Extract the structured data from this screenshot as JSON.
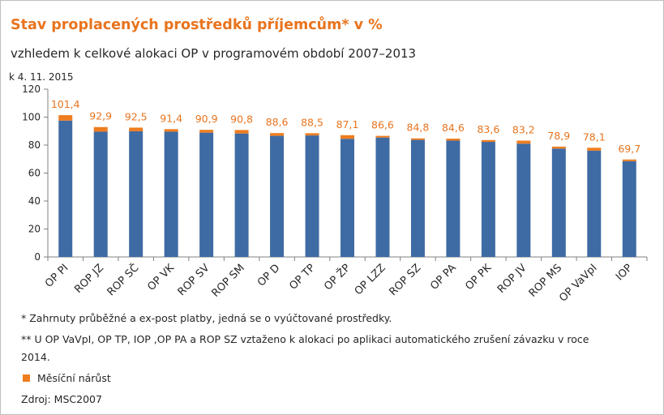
{
  "title": "Stav proplacených prostředků příjemcům* v %",
  "subtitle": "vzhledem k celkové alokaci OP v programovém období 2007–2013",
  "as_of": "k 4. 11. 2015",
  "notes": [
    "* Zahrnuty průběžné a ex-post platby, jedná se o vyúčtované prostředky.",
    "** U OP VaVpI, OP TP, IOP ,OP PA a ROP SZ vztaženo k alokaci po aplikaci automatického zrušení závazku v roce",
    "2014."
  ],
  "legend": {
    "label": "Měsíční nárůst",
    "color": "#ed7d1f"
  },
  "source": "Zdroj: MSC2007",
  "colors": {
    "base": "#3f6ba4",
    "increase": "#ed7d1f",
    "label": "#e8741e"
  },
  "chart_data": {
    "type": "bar",
    "stacked": true,
    "categories": [
      "OP PI",
      "ROP JZ",
      "ROP SČ",
      "OP VK",
      "ROP SV",
      "ROP SM",
      "OP D",
      "OP TP",
      "OP ŽP",
      "OP LZZ",
      "ROP SZ",
      "OP PA",
      "OP PK",
      "ROP JV",
      "ROP MS",
      "OP VaVpI",
      "IOP"
    ],
    "totals": [
      101.4,
      92.9,
      92.5,
      91.4,
      90.9,
      90.8,
      88.6,
      88.5,
      87.1,
      86.6,
      84.8,
      84.6,
      83.6,
      83.2,
      78.9,
      78.1,
      69.7
    ],
    "total_labels": [
      "101,4",
      "92,9",
      "92,5",
      "91,4",
      "90,9",
      "90,8",
      "88,6",
      "88,5",
      "87,1",
      "86,6",
      "84,8",
      "84,6",
      "83,6",
      "83,2",
      "78,9",
      "78,1",
      "69,7"
    ],
    "series": [
      {
        "values": [
          97.5,
          89.6,
          89.9,
          89.6,
          88.9,
          88.3,
          86.6,
          86.9,
          84.5,
          85.4,
          83.7,
          83.2,
          82.3,
          81.0,
          77.5,
          76.0,
          68.5
        ]
      },
      {
        "name": "Měsíční nárůst",
        "values": [
          3.9,
          3.3,
          2.6,
          1.8,
          2.0,
          2.5,
          2.0,
          1.6,
          2.6,
          1.2,
          1.1,
          1.4,
          1.3,
          2.2,
          1.4,
          2.1,
          1.2
        ]
      }
    ],
    "ylim": [
      0,
      120
    ],
    "yticks": [
      0,
      20,
      40,
      60,
      80,
      100,
      120
    ],
    "grid": false
  }
}
